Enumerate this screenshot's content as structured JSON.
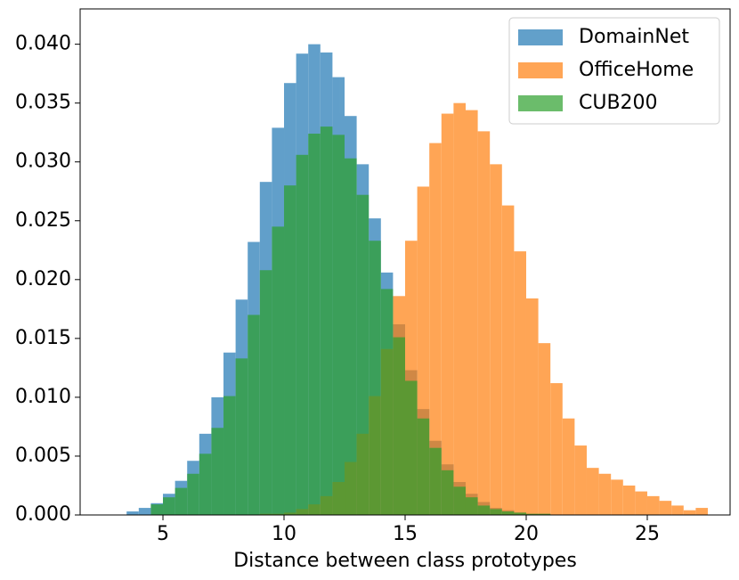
{
  "chart_data": {
    "type": "histogram",
    "xlabel": "Distance between class prototypes",
    "xlim": [
      1.58,
      28.42
    ],
    "ylim": [
      0,
      0.043
    ],
    "xticks": [
      5,
      10,
      15,
      20,
      25
    ],
    "yticks": [
      {
        "value": 0,
        "label": "0.000"
      },
      {
        "value": 0.005,
        "label": "0.005"
      },
      {
        "value": 0.01,
        "label": "0.010"
      },
      {
        "value": 0.015,
        "label": "0.015"
      },
      {
        "value": 0.02,
        "label": "0.020"
      },
      {
        "value": 0.025,
        "label": "0.025"
      },
      {
        "value": 0.03,
        "label": "0.030"
      },
      {
        "value": 0.035,
        "label": "0.035"
      },
      {
        "value": 0.04,
        "label": "0.040"
      }
    ],
    "grid": false,
    "legend": "upper right",
    "opacity": 0.7,
    "series": [
      {
        "name": "DomainNet",
        "color": "#1f77b4",
        "bins": [
          3.5,
          4,
          4.5,
          5,
          5.5,
          6,
          6.5,
          7,
          7.5,
          8,
          8.5,
          9,
          9.5,
          10,
          10.5,
          11,
          11.5,
          12,
          12.5,
          13,
          13.5,
          14,
          14.5,
          15,
          15.5,
          16,
          16.5,
          17,
          17.5,
          18,
          18.5,
          19,
          19.5,
          20,
          20.5,
          21
        ],
        "values": [
          0.0003,
          0.0006,
          0.001,
          0.0018,
          0.0029,
          0.0046,
          0.0069,
          0.01,
          0.0138,
          0.0183,
          0.0232,
          0.0283,
          0.0329,
          0.0367,
          0.0392,
          0.04,
          0.0393,
          0.0372,
          0.0339,
          0.0298,
          0.0252,
          0.0206,
          0.0162,
          0.0123,
          0.009,
          0.0063,
          0.0043,
          0.0028,
          0.0018,
          0.0011,
          0.0006,
          0.0004,
          0.0002,
          0.0001,
          0.0001
        ]
      },
      {
        "name": "OfficeHome",
        "color": "#ff7f0e",
        "bins": [
          9,
          9.5,
          10,
          10.5,
          11,
          11.5,
          12,
          12.5,
          13,
          13.5,
          14,
          14.5,
          15,
          15.5,
          16,
          16.5,
          17,
          17.5,
          18,
          18.5,
          19,
          19.5,
          20,
          20.5,
          21,
          21.5,
          22,
          22.5,
          23,
          23.5,
          24,
          24.5,
          25,
          25.5,
          26,
          26.5,
          27,
          27.5
        ],
        "values": [
          0.0001,
          0.0001,
          0.0002,
          0.0005,
          0.0009,
          0.0016,
          0.0028,
          0.0045,
          0.0069,
          0.0101,
          0.0141,
          0.0186,
          0.0233,
          0.0279,
          0.0316,
          0.0341,
          0.035,
          0.0344,
          0.0326,
          0.0298,
          0.0263,
          0.0224,
          0.0184,
          0.0146,
          0.0112,
          0.0082,
          0.0059,
          0.004,
          0.0035,
          0.003,
          0.0025,
          0.002,
          0.0016,
          0.0012,
          0.0008,
          0.0004,
          0.0006
        ]
      },
      {
        "name": "CUB200",
        "color": "#2ca02c",
        "bins": [
          4.5,
          5,
          5.5,
          6,
          6.5,
          7,
          7.5,
          8,
          8.5,
          9,
          9.5,
          10,
          10.5,
          11,
          11.5,
          12,
          12.5,
          13,
          13.5,
          14,
          14.5,
          15,
          15.5,
          16,
          16.5,
          17,
          17.5,
          18,
          18.5,
          19,
          19.5,
          20,
          20.5,
          21
        ],
        "values": [
          0.0009,
          0.0015,
          0.0023,
          0.0035,
          0.0052,
          0.0074,
          0.0101,
          0.0133,
          0.017,
          0.0208,
          0.0245,
          0.028,
          0.0306,
          0.0324,
          0.033,
          0.0323,
          0.0303,
          0.0272,
          0.0233,
          0.0192,
          0.0151,
          0.0114,
          0.0082,
          0.0057,
          0.0038,
          0.0024,
          0.0015,
          0.0008,
          0.0005,
          0.0003,
          0.0002,
          0.0001,
          0.0001
        ]
      }
    ]
  }
}
